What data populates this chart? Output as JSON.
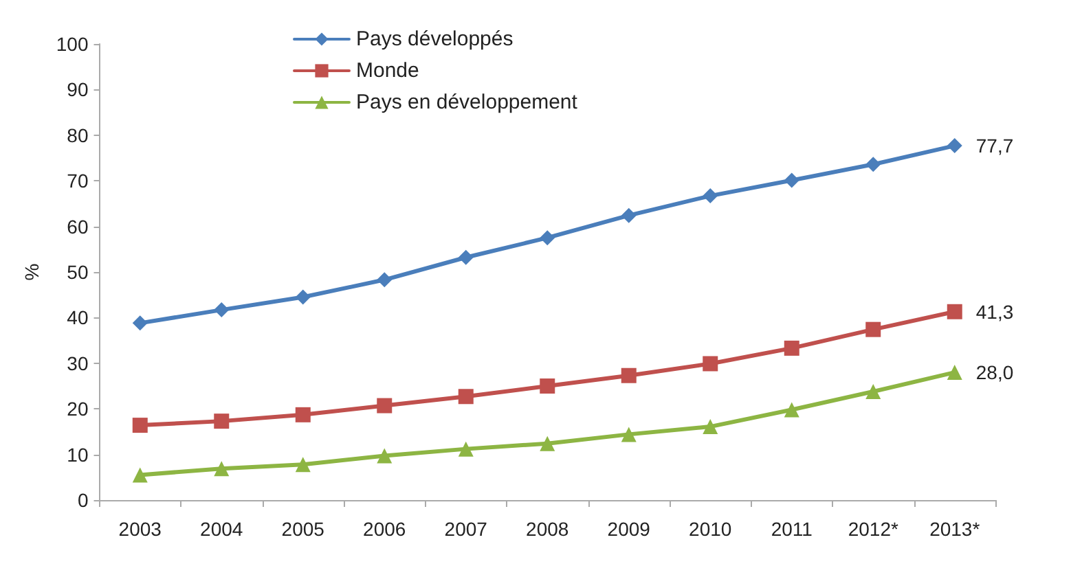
{
  "chart_data": {
    "type": "line",
    "ylabel": "%",
    "categories": [
      "2003",
      "2004",
      "2005",
      "2006",
      "2007",
      "2008",
      "2009",
      "2010",
      "2011",
      "2012*",
      "2013*"
    ],
    "series": [
      {
        "name": "Pays développés",
        "color": "#4a7ebb",
        "marker": "diamond",
        "values": [
          38.8,
          41.7,
          44.5,
          48.3,
          53.2,
          57.5,
          62.4,
          66.7,
          70.1,
          73.6,
          77.7
        ],
        "value_labels": [
          null,
          null,
          null,
          null,
          null,
          null,
          null,
          null,
          null,
          null,
          "77,7"
        ]
      },
      {
        "name": "Monde",
        "color": "#c0504d",
        "marker": "square",
        "values": [
          16.4,
          17.3,
          18.7,
          20.7,
          22.7,
          25.0,
          27.3,
          29.9,
          33.3,
          37.4,
          41.3
        ],
        "value_labels": [
          null,
          null,
          null,
          null,
          null,
          null,
          null,
          null,
          null,
          null,
          "41,3"
        ]
      },
      {
        "name": "Pays en développement",
        "color": "#8db543",
        "marker": "triangle",
        "values": [
          5.5,
          6.9,
          7.8,
          9.7,
          11.2,
          12.4,
          14.4,
          16.1,
          19.8,
          23.8,
          28.0
        ],
        "value_labels": [
          null,
          null,
          null,
          null,
          null,
          null,
          null,
          null,
          null,
          null,
          "28,0"
        ]
      }
    ],
    "ylim": [
      0,
      100
    ],
    "yticks": [
      0,
      10,
      20,
      30,
      40,
      50,
      60,
      70,
      80,
      90,
      100
    ],
    "grid": false,
    "legend": "top",
    "line_style": "solid"
  }
}
